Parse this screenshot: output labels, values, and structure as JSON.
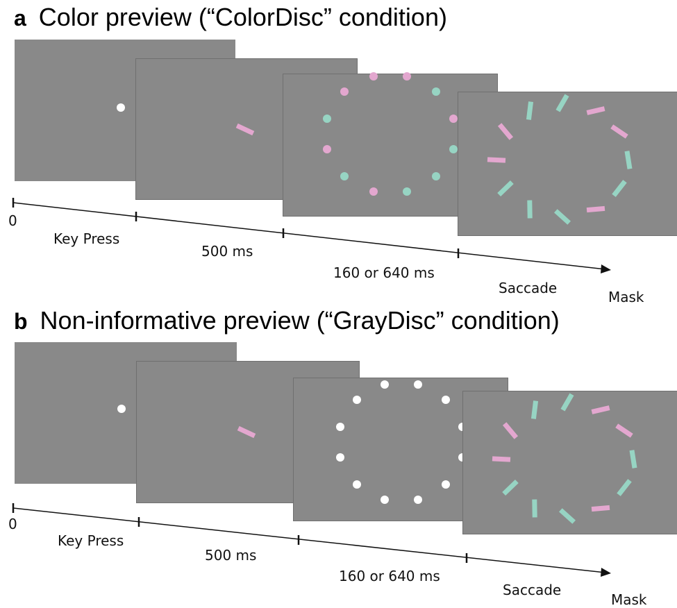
{
  "colors": {
    "screen": "#898989",
    "pink": "#e3a7cf",
    "green": "#97d4c3",
    "white": "#ffffff"
  },
  "panels": [
    {
      "letter": "a",
      "title": "Color preview (“ColorDisc” condition)",
      "labels": {
        "t0": "0",
        "key_press": "Key Press",
        "fixation": "500 ms",
        "preview": "160 or 640 ms",
        "saccade": "Saccade",
        "mask": "Mask"
      },
      "fixation_dot": "white",
      "cue_color": "pink",
      "preview_discs": [
        "pink",
        "pink",
        "green",
        "pink",
        "green",
        "green",
        "green",
        "pink",
        "green",
        "pink",
        "green",
        "pink"
      ],
      "mask_bars": [
        "green",
        "pink",
        "pink",
        "green",
        "green",
        "pink",
        "green",
        "green",
        "green",
        "pink",
        "pink",
        "green"
      ]
    },
    {
      "letter": "b",
      "title": "Non-informative preview (“GrayDisc” condition)",
      "labels": {
        "t0": "0",
        "key_press": "Key Press",
        "fixation": "500 ms",
        "preview": "160 or 640 ms",
        "saccade": "Saccade",
        "mask": "Mask"
      },
      "fixation_dot": "white",
      "cue_color": "pink",
      "preview_discs": [
        "white",
        "white",
        "white",
        "white",
        "white",
        "white",
        "white",
        "white",
        "white",
        "white",
        "white",
        "white"
      ],
      "mask_bars": [
        "green",
        "pink",
        "pink",
        "green",
        "green",
        "pink",
        "green",
        "green",
        "green",
        "pink",
        "pink",
        "green"
      ]
    }
  ]
}
